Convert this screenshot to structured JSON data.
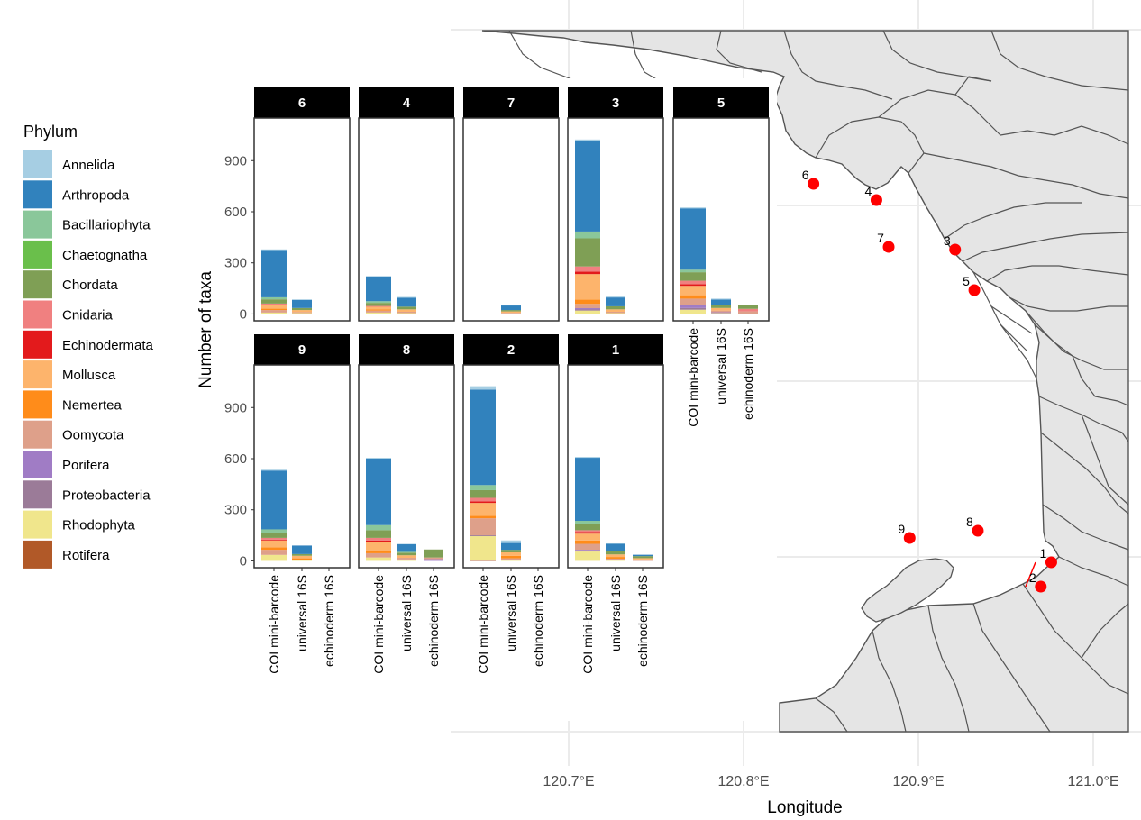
{
  "colors": {
    "background": "#ffffff",
    "land": "#e5e5e5",
    "border": "#555555",
    "grid": "#ebebeb",
    "strip": "#000000",
    "strip_text": "#ffffff",
    "site": "#ff0000",
    "axis_text": "#4d4d4d",
    "title_text": "#000000"
  },
  "map": {
    "xlabel": "Longitude",
    "lon_ticks": [
      "120.7°E",
      "120.8°E",
      "120.9°E",
      "121.0°E"
    ],
    "lon_values": [
      120.7,
      120.8,
      120.9,
      121.0
    ],
    "sites": [
      {
        "label": "6",
        "lon": 120.84
      },
      {
        "label": "4",
        "lon": 120.876
      },
      {
        "label": "7",
        "lon": 120.883
      },
      {
        "label": "3",
        "lon": 120.921
      },
      {
        "label": "5",
        "lon": 120.932
      },
      {
        "label": "9",
        "lon": 120.895
      },
      {
        "label": "8",
        "lon": 120.934
      },
      {
        "label": "1",
        "lon": 120.976
      },
      {
        "label": "2",
        "lon": 120.97
      }
    ]
  },
  "legend": {
    "title": "Phylum",
    "entries": [
      {
        "label": "Annelida",
        "color": "#a6cee3"
      },
      {
        "label": "Arthropoda",
        "color": "#3182bd"
      },
      {
        "label": "Bacillariophyta",
        "color": "#8ac79a"
      },
      {
        "label": "Chaetognatha",
        "color": "#6abf4b"
      },
      {
        "label": "Chordata",
        "color": "#7f9f55"
      },
      {
        "label": "Cnidaria",
        "color": "#f08080"
      },
      {
        "label": "Echinodermata",
        "color": "#e31a1c"
      },
      {
        "label": "Mollusca",
        "color": "#fdb46c"
      },
      {
        "label": "Nemertea",
        "color": "#ff8c1a"
      },
      {
        "label": "Oomycota",
        "color": "#dea08a"
      },
      {
        "label": "Porifera",
        "color": "#a07cc5"
      },
      {
        "label": "Proteobacteria",
        "color": "#9b7b98"
      },
      {
        "label": "Rhodophyta",
        "color": "#f0e68c"
      },
      {
        "label": "Rotifera",
        "color": "#b15928"
      }
    ]
  },
  "chart_data": {
    "type": "bar",
    "stacked": true,
    "ylabel": "Number of taxa",
    "yticks": [
      0,
      300,
      600,
      900
    ],
    "ylim": [
      0,
      1150
    ],
    "categories": [
      "COI mini-barcode",
      "universal 16S",
      "echinoderm 16S"
    ],
    "category_axis_panels": [
      "5",
      "9",
      "8",
      "2",
      "1"
    ],
    "panels": [
      {
        "site": "6",
        "bars": [
          {
            "category": "COI mini-barcode",
            "segments": [
              [
                "Rhodophyta",
                8
              ],
              [
                "Oomycota",
                15
              ],
              [
                "Nemertea",
                8
              ],
              [
                "Mollusca",
                20
              ],
              [
                "Echinodermata",
                4
              ],
              [
                "Cnidaria",
                6
              ],
              [
                "Chordata",
                25
              ],
              [
                "Bacillariophyta",
                12
              ],
              [
                "Arthropoda",
                277
              ],
              [
                "Annelida",
                4
              ]
            ]
          },
          {
            "category": "universal 16S",
            "segments": [
              [
                "Rhodophyta",
                5
              ],
              [
                "Oomycota",
                6
              ],
              [
                "Mollusca",
                12
              ],
              [
                "Chordata",
                12
              ],
              [
                "Arthropoda",
                47
              ],
              [
                "Annelida",
                4
              ]
            ]
          }
        ]
      },
      {
        "site": "4",
        "bars": [
          {
            "category": "COI mini-barcode",
            "segments": [
              [
                "Rhodophyta",
                8
              ],
              [
                "Oomycota",
                12
              ],
              [
                "Nemertea",
                6
              ],
              [
                "Mollusca",
                16
              ],
              [
                "Cnidaria",
                5
              ],
              [
                "Chordata",
                18
              ],
              [
                "Bacillariophyta",
                10
              ],
              [
                "Arthropoda",
                145
              ],
              [
                "Annelida",
                3
              ]
            ]
          },
          {
            "category": "universal 16S",
            "segments": [
              [
                "Rhodophyta",
                5
              ],
              [
                "Oomycota",
                8
              ],
              [
                "Mollusca",
                14
              ],
              [
                "Chordata",
                16
              ],
              [
                "Arthropoda",
                52
              ],
              [
                "Annelida",
                5
              ]
            ]
          }
        ]
      },
      {
        "site": "7",
        "bars": [
          {
            "category": "universal 16S",
            "segments": [
              [
                "Rhodophyta",
                3
              ],
              [
                "Oomycota",
                4
              ],
              [
                "Mollusca",
                8
              ],
              [
                "Chordata",
                8
              ],
              [
                "Arthropoda",
                27
              ],
              [
                "Annelida",
                2
              ]
            ]
          }
        ]
      },
      {
        "site": "3",
        "bars": [
          {
            "category": "COI mini-barcode",
            "segments": [
              [
                "Rhodophyta",
                20
              ],
              [
                "Proteobacteria",
                6
              ],
              [
                "Porifera",
                8
              ],
              [
                "Oomycota",
                25
              ],
              [
                "Nemertea",
                25
              ],
              [
                "Mollusca",
                150
              ],
              [
                "Echinodermata",
                15
              ],
              [
                "Cnidaria",
                30
              ],
              [
                "Chordata",
                165
              ],
              [
                "Bacillariophyta",
                40
              ],
              [
                "Arthropoda",
                530
              ],
              [
                "Annelida",
                10
              ]
            ]
          },
          {
            "category": "universal 16S",
            "segments": [
              [
                "Rhodophyta",
                5
              ],
              [
                "Oomycota",
                8
              ],
              [
                "Mollusca",
                14
              ],
              [
                "Chordata",
                18
              ],
              [
                "Arthropoda",
                52
              ],
              [
                "Annelida",
                5
              ]
            ]
          }
        ]
      },
      {
        "site": "5",
        "bars": [
          {
            "category": "COI mini-barcode",
            "segments": [
              [
                "Rhodophyta",
                25
              ],
              [
                "Proteobacteria",
                10
              ],
              [
                "Porifera",
                20
              ],
              [
                "Oomycota",
                35
              ],
              [
                "Nemertea",
                20
              ],
              [
                "Mollusca",
                55
              ],
              [
                "Echinodermata",
                10
              ],
              [
                "Cnidaria",
                20
              ],
              [
                "Chordata",
                50
              ],
              [
                "Bacillariophyta",
                15
              ],
              [
                "Arthropoda",
                360
              ],
              [
                "Annelida",
                5
              ]
            ]
          },
          {
            "category": "universal 16S",
            "segments": [
              [
                "Rhodophyta",
                5
              ],
              [
                "Porifera",
                5
              ],
              [
                "Oomycota",
                10
              ],
              [
                "Mollusca",
                15
              ],
              [
                "Chordata",
                18
              ],
              [
                "Arthropoda",
                32
              ],
              [
                "Annelida",
                5
              ]
            ]
          },
          {
            "category": "echinoderm 16S",
            "segments": [
              [
                "Oomycota",
                15
              ],
              [
                "Cnidaria",
                15
              ],
              [
                "Chordata",
                20
              ]
            ]
          }
        ]
      },
      {
        "site": "9",
        "bars": [
          {
            "category": "COI mini-barcode",
            "segments": [
              [
                "Rhodophyta",
                35
              ],
              [
                "Oomycota",
                30
              ],
              [
                "Nemertea",
                15
              ],
              [
                "Mollusca",
                40
              ],
              [
                "Echinodermata",
                5
              ],
              [
                "Cnidaria",
                10
              ],
              [
                "Chordata",
                30
              ],
              [
                "Bacillariophyta",
                20
              ],
              [
                "Arthropoda",
                345
              ],
              [
                "Annelida",
                5
              ]
            ]
          },
          {
            "category": "universal 16S",
            "segments": [
              [
                "Rhodophyta",
                5
              ],
              [
                "Nemertea",
                10
              ],
              [
                "Mollusca",
                15
              ],
              [
                "Chordata",
                10
              ],
              [
                "Arthropoda",
                50
              ]
            ]
          }
        ]
      },
      {
        "site": "8",
        "bars": [
          {
            "category": "COI mini-barcode",
            "segments": [
              [
                "Rhodophyta",
                20
              ],
              [
                "Oomycota",
                25
              ],
              [
                "Nemertea",
                15
              ],
              [
                "Mollusca",
                50
              ],
              [
                "Echinodermata",
                10
              ],
              [
                "Cnidaria",
                15
              ],
              [
                "Chordata",
                45
              ],
              [
                "Bacillariophyta",
                30
              ],
              [
                "Arthropoda",
                390
              ],
              [
                "Annelida",
                5
              ]
            ]
          },
          {
            "category": "universal 16S",
            "segments": [
              [
                "Rhodophyta",
                8
              ],
              [
                "Oomycota",
                10
              ],
              [
                "Mollusca",
                15
              ],
              [
                "Chordata",
                15
              ],
              [
                "Bacillariophyta",
                5
              ],
              [
                "Arthropoda",
                45
              ],
              [
                "Annelida",
                2
              ]
            ]
          },
          {
            "category": "echinoderm 16S",
            "segments": [
              [
                "Porifera",
                10
              ],
              [
                "Oomycota",
                10
              ],
              [
                "Chordata",
                47
              ]
            ]
          }
        ]
      },
      {
        "site": "2",
        "bars": [
          {
            "category": "COI mini-barcode",
            "segments": [
              [
                "Rotifera",
                5
              ],
              [
                "Rhodophyta",
                140
              ],
              [
                "Proteobacteria",
                5
              ],
              [
                "Oomycota",
                100
              ],
              [
                "Nemertea",
                15
              ],
              [
                "Mollusca",
                75
              ],
              [
                "Echinodermata",
                10
              ],
              [
                "Cnidaria",
                20
              ],
              [
                "Chordata",
                45
              ],
              [
                "Bacillariophyta",
                30
              ],
              [
                "Arthropoda",
                560
              ],
              [
                "Annelida",
                20
              ]
            ]
          },
          {
            "category": "universal 16S",
            "segments": [
              [
                "Rhodophyta",
                5
              ],
              [
                "Oomycota",
                10
              ],
              [
                "Nemertea",
                15
              ],
              [
                "Mollusca",
                20
              ],
              [
                "Chordata",
                15
              ],
              [
                "Arthropoda",
                40
              ],
              [
                "Annelida",
                15
              ]
            ]
          }
        ]
      },
      {
        "site": "1",
        "bars": [
          {
            "category": "COI mini-barcode",
            "segments": [
              [
                "Rhodophyta",
                55
              ],
              [
                "Porifera",
                10
              ],
              [
                "Oomycota",
                35
              ],
              [
                "Nemertea",
                20
              ],
              [
                "Mollusca",
                40
              ],
              [
                "Echinodermata",
                10
              ],
              [
                "Cnidaria",
                10
              ],
              [
                "Chordata",
                35
              ],
              [
                "Bacillariophyta",
                20
              ],
              [
                "Arthropoda",
                370
              ],
              [
                "Annelida",
                5
              ]
            ]
          },
          {
            "category": "universal 16S",
            "segments": [
              [
                "Rhodophyta",
                5
              ],
              [
                "Oomycota",
                8
              ],
              [
                "Nemertea",
                10
              ],
              [
                "Mollusca",
                15
              ],
              [
                "Chordata",
                20
              ],
              [
                "Arthropoda",
                42
              ],
              [
                "Annelida",
                3
              ]
            ]
          },
          {
            "category": "echinoderm 16S",
            "segments": [
              [
                "Oomycota",
                8
              ],
              [
                "Mollusca",
                8
              ],
              [
                "Chordata",
                12
              ],
              [
                "Arthropoda",
                8
              ]
            ]
          }
        ]
      }
    ]
  }
}
